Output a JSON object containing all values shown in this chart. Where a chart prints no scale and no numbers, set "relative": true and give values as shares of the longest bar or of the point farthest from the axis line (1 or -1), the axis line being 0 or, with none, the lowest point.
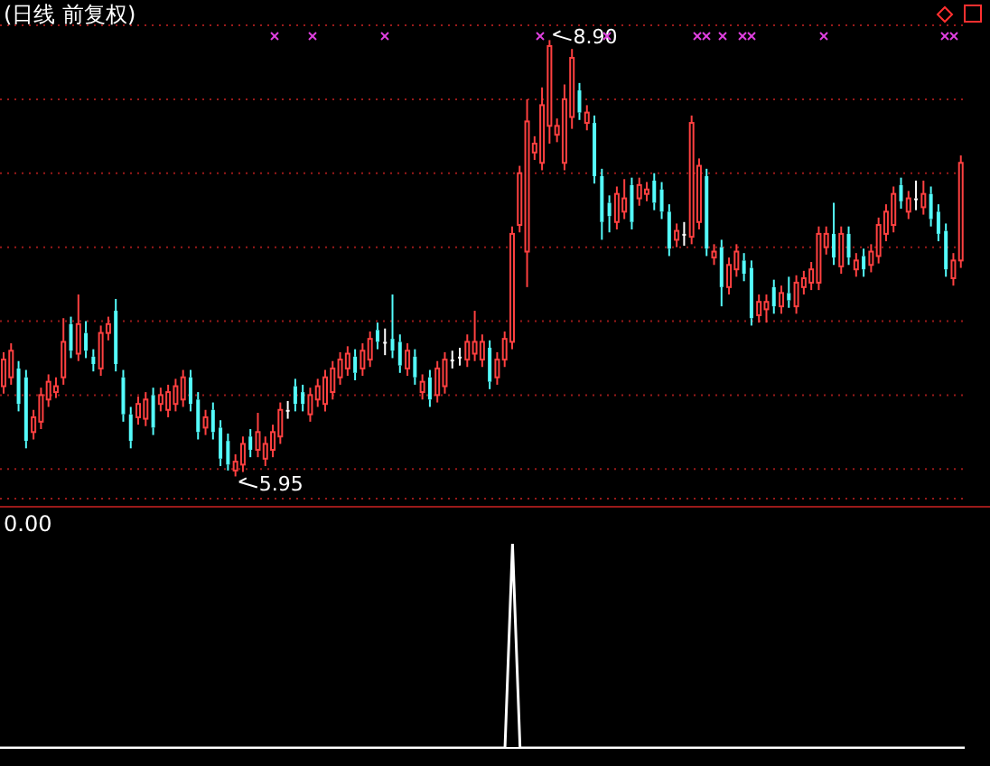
{
  "chart_data": [
    {
      "type": "candlestick",
      "title": "(日线 前复权)",
      "categories": [
        null,
        null,
        null,
        null,
        null,
        null,
        null,
        null,
        null,
        null,
        null,
        null,
        null,
        null,
        null,
        null,
        null,
        null,
        null,
        null,
        null,
        null,
        null,
        null,
        null,
        null,
        null,
        null,
        null,
        null,
        null,
        null,
        null,
        null,
        null,
        null,
        null,
        null,
        null,
        null,
        null,
        null,
        null,
        null,
        null,
        null,
        null,
        null,
        null,
        null,
        null,
        null,
        null,
        null,
        null,
        null,
        null,
        null,
        null,
        null,
        null,
        null,
        null,
        null,
        null,
        null,
        null,
        null,
        null,
        null,
        null,
        null,
        null,
        null,
        null,
        null,
        null,
        null,
        null,
        null,
        null,
        null,
        null,
        null,
        null,
        null,
        null,
        null,
        null,
        null,
        null,
        null,
        null,
        null,
        null,
        null,
        null,
        null,
        null,
        null,
        null,
        null,
        null,
        null,
        null,
        null,
        null,
        null,
        null,
        null,
        null,
        null,
        null,
        null,
        null,
        null,
        null,
        null,
        null,
        null,
        null,
        null,
        null,
        null,
        null,
        null,
        null,
        null,
        null
      ],
      "ohlc": [
        [
          6.56,
          6.79,
          6.51,
          6.74
        ],
        [
          6.62,
          6.85,
          6.57,
          6.8
        ],
        [
          6.68,
          6.73,
          6.39,
          6.44
        ],
        [
          6.62,
          6.67,
          6.14,
          6.19
        ],
        [
          6.25,
          6.4,
          6.2,
          6.35
        ],
        [
          6.32,
          6.55,
          6.27,
          6.5
        ],
        [
          6.47,
          6.64,
          6.42,
          6.59
        ],
        [
          6.52,
          6.62,
          6.48,
          6.56
        ],
        [
          6.62,
          7.02,
          6.57,
          6.86
        ],
        [
          6.98,
          7.03,
          6.75,
          6.8
        ],
        [
          6.78,
          7.18,
          6.73,
          6.98
        ],
        [
          6.92,
          7.0,
          6.75,
          6.8
        ],
        [
          6.76,
          6.81,
          6.66,
          6.71
        ],
        [
          6.68,
          6.97,
          6.63,
          6.92
        ],
        [
          6.92,
          7.03,
          6.87,
          6.98
        ],
        [
          7.07,
          7.15,
          6.66,
          6.71
        ],
        [
          6.62,
          6.67,
          6.32,
          6.37
        ],
        [
          6.37,
          6.42,
          6.14,
          6.19
        ],
        [
          6.35,
          6.49,
          6.3,
          6.44
        ],
        [
          6.34,
          6.52,
          6.29,
          6.47
        ],
        [
          6.5,
          6.55,
          6.23,
          6.28
        ],
        [
          6.44,
          6.55,
          6.39,
          6.5
        ],
        [
          6.4,
          6.57,
          6.35,
          6.52
        ],
        [
          6.44,
          6.61,
          6.39,
          6.56
        ],
        [
          6.47,
          6.67,
          6.42,
          6.62
        ],
        [
          6.62,
          6.67,
          6.39,
          6.44
        ],
        [
          6.47,
          6.52,
          6.2,
          6.25
        ],
        [
          6.28,
          6.4,
          6.23,
          6.35
        ],
        [
          6.4,
          6.45,
          6.2,
          6.25
        ],
        [
          6.28,
          6.33,
          6.02,
          6.07
        ],
        [
          6.19,
          6.24,
          5.99,
          6.03
        ],
        [
          5.99,
          6.1,
          5.95,
          6.05
        ],
        [
          6.03,
          6.22,
          5.98,
          6.17
        ],
        [
          6.22,
          6.27,
          6.08,
          6.13
        ],
        [
          6.13,
          6.38,
          6.08,
          6.25
        ],
        [
          6.07,
          6.22,
          6.02,
          6.17
        ],
        [
          6.13,
          6.3,
          6.08,
          6.25
        ],
        [
          6.22,
          6.45,
          6.17,
          6.4
        ],
        [
          6.4,
          6.46,
          6.34,
          6.4
        ],
        [
          6.56,
          6.61,
          6.39,
          6.44
        ],
        [
          6.52,
          6.57,
          6.39,
          6.44
        ],
        [
          6.37,
          6.55,
          6.32,
          6.5
        ],
        [
          6.47,
          6.61,
          6.42,
          6.56
        ],
        [
          6.44,
          6.67,
          6.39,
          6.62
        ],
        [
          6.52,
          6.73,
          6.47,
          6.68
        ],
        [
          6.62,
          6.79,
          6.57,
          6.74
        ],
        [
          6.68,
          6.83,
          6.63,
          6.78
        ],
        [
          6.76,
          6.81,
          6.6,
          6.65
        ],
        [
          6.68,
          6.85,
          6.63,
          6.8
        ],
        [
          6.74,
          6.93,
          6.69,
          6.88
        ],
        [
          6.94,
          6.99,
          6.81,
          6.86
        ],
        [
          6.86,
          6.95,
          6.77,
          6.86
        ],
        [
          6.88,
          7.18,
          6.75,
          6.8
        ],
        [
          6.86,
          6.91,
          6.65,
          6.7
        ],
        [
          6.68,
          6.85,
          6.63,
          6.8
        ],
        [
          6.76,
          6.81,
          6.57,
          6.62
        ],
        [
          6.52,
          6.64,
          6.47,
          6.59
        ],
        [
          6.62,
          6.67,
          6.42,
          6.47
        ],
        [
          6.5,
          6.73,
          6.45,
          6.68
        ],
        [
          6.56,
          6.79,
          6.51,
          6.74
        ],
        [
          6.74,
          6.8,
          6.68,
          6.74
        ],
        [
          6.76,
          6.82,
          6.7,
          6.76
        ],
        [
          6.74,
          6.91,
          6.69,
          6.86
        ],
        [
          6.78,
          7.07,
          6.73,
          6.86
        ],
        [
          6.74,
          6.91,
          6.69,
          6.86
        ],
        [
          6.82,
          6.87,
          6.54,
          6.59
        ],
        [
          6.62,
          6.79,
          6.57,
          6.74
        ],
        [
          6.74,
          6.93,
          6.69,
          6.88
        ],
        [
          6.86,
          7.64,
          6.81,
          7.59
        ],
        [
          7.65,
          8.05,
          7.6,
          8.0
        ],
        [
          7.47,
          8.5,
          7.23,
          8.35
        ],
        [
          8.14,
          8.25,
          8.09,
          8.2
        ],
        [
          8.07,
          8.58,
          8.02,
          8.46
        ],
        [
          8.32,
          8.9,
          8.2,
          8.86
        ],
        [
          8.26,
          8.37,
          8.21,
          8.32
        ],
        [
          8.07,
          8.6,
          8.02,
          8.5
        ],
        [
          8.38,
          8.84,
          8.3,
          8.78
        ],
        [
          8.56,
          8.61,
          8.36,
          8.41
        ],
        [
          8.34,
          8.46,
          8.29,
          8.41
        ],
        [
          8.34,
          8.39,
          7.93,
          7.98
        ],
        [
          7.98,
          8.03,
          7.55,
          7.67
        ],
        [
          7.8,
          7.85,
          7.6,
          7.71
        ],
        [
          7.67,
          7.91,
          7.62,
          7.86
        ],
        [
          7.74,
          7.96,
          7.69,
          7.83
        ],
        [
          7.92,
          7.97,
          7.62,
          7.67
        ],
        [
          7.83,
          7.97,
          7.78,
          7.92
        ],
        [
          7.86,
          7.94,
          7.81,
          7.89
        ],
        [
          7.95,
          8.0,
          7.75,
          7.8
        ],
        [
          7.89,
          7.94,
          7.69,
          7.74
        ],
        [
          7.74,
          7.79,
          7.44,
          7.49
        ],
        [
          7.55,
          7.66,
          7.5,
          7.61
        ],
        [
          7.59,
          7.67,
          7.51,
          7.59
        ],
        [
          7.57,
          8.39,
          7.52,
          8.34
        ],
        [
          7.67,
          8.1,
          7.62,
          8.05
        ],
        [
          7.98,
          8.03,
          7.44,
          7.49
        ],
        [
          7.43,
          7.52,
          7.38,
          7.47
        ],
        [
          7.5,
          7.55,
          7.1,
          7.23
        ],
        [
          7.23,
          7.43,
          7.18,
          7.38
        ],
        [
          7.35,
          7.52,
          7.3,
          7.47
        ],
        [
          7.41,
          7.46,
          7.27,
          7.32
        ],
        [
          7.36,
          7.41,
          6.97,
          7.02
        ],
        [
          7.04,
          7.18,
          6.99,
          7.13
        ],
        [
          7.08,
          7.18,
          6.99,
          7.13
        ],
        [
          7.23,
          7.28,
          7.05,
          7.1
        ],
        [
          7.1,
          7.24,
          7.05,
          7.19
        ],
        [
          7.19,
          7.3,
          7.09,
          7.14
        ],
        [
          7.1,
          7.31,
          7.05,
          7.26
        ],
        [
          7.23,
          7.34,
          7.18,
          7.29
        ],
        [
          7.26,
          7.4,
          7.21,
          7.35
        ],
        [
          7.26,
          7.64,
          7.21,
          7.59
        ],
        [
          7.5,
          7.64,
          7.45,
          7.59
        ],
        [
          7.59,
          7.8,
          7.38,
          7.43
        ],
        [
          7.37,
          7.64,
          7.32,
          7.59
        ],
        [
          7.59,
          7.64,
          7.38,
          7.43
        ],
        [
          7.35,
          7.46,
          7.3,
          7.41
        ],
        [
          7.44,
          7.49,
          7.3,
          7.35
        ],
        [
          7.38,
          7.52,
          7.33,
          7.47
        ],
        [
          7.44,
          7.7,
          7.39,
          7.65
        ],
        [
          7.59,
          7.79,
          7.54,
          7.74
        ],
        [
          7.65,
          7.91,
          7.6,
          7.86
        ],
        [
          7.92,
          7.97,
          7.76,
          7.81
        ],
        [
          7.74,
          7.88,
          7.69,
          7.83
        ],
        [
          7.83,
          7.95,
          7.75,
          7.83
        ],
        [
          7.77,
          7.95,
          7.72,
          7.86
        ],
        [
          7.86,
          7.91,
          7.64,
          7.69
        ],
        [
          7.74,
          7.79,
          7.54,
          7.59
        ],
        [
          7.61,
          7.66,
          7.3,
          7.35
        ],
        [
          7.29,
          7.46,
          7.24,
          7.41
        ],
        [
          7.41,
          8.12,
          7.36,
          8.07
        ]
      ],
      "colors": [
        "#ff4040",
        "#ff4040",
        "#54fcfc",
        "#54fcfc",
        "#ff4040",
        "#ff4040",
        "#ff4040",
        "#ff4040",
        "#ff4040",
        "#54fcfc",
        "#ff4040",
        "#54fcfc",
        "#54fcfc",
        "#ff4040",
        "#ff4040",
        "#54fcfc",
        "#54fcfc",
        "#54fcfc",
        "#ff4040",
        "#ff4040",
        "#54fcfc",
        "#ff4040",
        "#ff4040",
        "#ff4040",
        "#ff4040",
        "#54fcfc",
        "#54fcfc",
        "#ff4040",
        "#54fcfc",
        "#54fcfc",
        "#54fcfc",
        "#ff4040",
        "#ff4040",
        "#54fcfc",
        "#ff4040",
        "#ff4040",
        "#ff4040",
        "#ff4040",
        "#ffffff",
        "#54fcfc",
        "#54fcfc",
        "#ff4040",
        "#ff4040",
        "#ff4040",
        "#ff4040",
        "#ff4040",
        "#ff4040",
        "#54fcfc",
        "#ff4040",
        "#ff4040",
        "#54fcfc",
        "#ffffff",
        "#54fcfc",
        "#54fcfc",
        "#ff4040",
        "#54fcfc",
        "#ff4040",
        "#54fcfc",
        "#ff4040",
        "#ff4040",
        "#ffffff",
        "#ffffff",
        "#ff4040",
        "#ff4040",
        "#ff4040",
        "#54fcfc",
        "#ff4040",
        "#ff4040",
        "#ff4040",
        "#ff4040",
        "#ff4040",
        "#ff4040",
        "#ff4040",
        "#ff4040",
        "#ff4040",
        "#ff4040",
        "#ff4040",
        "#54fcfc",
        "#ff4040",
        "#54fcfc",
        "#54fcfc",
        "#54fcfc",
        "#ff4040",
        "#ff4040",
        "#54fcfc",
        "#ff4040",
        "#ff4040",
        "#54fcfc",
        "#54fcfc",
        "#54fcfc",
        "#ff4040",
        "#ffffff",
        "#ff4040",
        "#ff4040",
        "#54fcfc",
        "#ff4040",
        "#54fcfc",
        "#ff4040",
        "#ff4040",
        "#54fcfc",
        "#54fcfc",
        "#ff4040",
        "#ff4040",
        "#54fcfc",
        "#ff4040",
        "#54fcfc",
        "#ff4040",
        "#ff4040",
        "#ff4040",
        "#ff4040",
        "#ff4040",
        "#54fcfc",
        "#ff4040",
        "#54fcfc",
        "#ff4040",
        "#54fcfc",
        "#ff4040",
        "#ff4040",
        "#ff4040",
        "#ff4040",
        "#54fcfc",
        "#ff4040",
        "#ffffff",
        "#ff4040",
        "#54fcfc",
        "#54fcfc",
        "#54fcfc",
        "#ff4040",
        "#ff4040"
      ],
      "ylim": [
        5.8,
        9.0
      ],
      "yticks": [
        {
          "value": 6.0,
          "label": null
        },
        {
          "value": 6.5,
          "label": null
        },
        {
          "value": 7.0,
          "label": null
        },
        {
          "value": 7.5,
          "label": null
        },
        {
          "value": 8.0,
          "label": null
        },
        {
          "value": 8.5,
          "label": null
        }
      ],
      "grid": "y",
      "tick_labels": false,
      "annotations": [
        "8.90",
        "5.95"
      ]
    },
    {
      "type": "line",
      "title": "0.00",
      "categories": [
        null,
        null,
        null,
        null,
        null,
        null,
        null,
        null,
        null,
        null,
        null,
        null,
        null,
        null,
        null,
        null,
        null,
        null,
        null,
        null,
        null,
        null,
        null,
        null,
        null,
        null,
        null,
        null,
        null,
        null,
        null,
        null,
        null,
        null,
        null,
        null,
        null,
        null,
        null,
        null,
        null,
        null,
        null,
        null,
        null,
        null,
        null,
        null,
        null,
        null,
        null,
        null,
        null,
        null,
        null,
        null,
        null,
        null,
        null,
        null,
        null,
        null,
        null,
        null,
        null,
        null,
        null,
        null,
        null,
        null,
        null,
        null,
        null,
        null,
        null,
        null,
        null,
        null,
        null,
        null,
        null,
        null,
        null,
        null,
        null,
        null,
        null,
        null,
        null,
        null,
        null,
        null,
        null,
        null,
        null,
        null,
        null,
        null,
        null,
        null,
        null,
        null,
        null,
        null,
        null,
        null,
        null,
        null,
        null,
        null,
        null,
        null,
        null,
        null,
        null,
        null,
        null,
        null,
        null,
        null,
        null,
        null,
        null,
        null,
        null,
        null,
        null,
        null,
        null
      ],
      "values": [
        0,
        0,
        0,
        0,
        0,
        0,
        0,
        0,
        0,
        0,
        0,
        0,
        0,
        0,
        0,
        0,
        0,
        0,
        0,
        0,
        0,
        0,
        0,
        0,
        0,
        0,
        0,
        0,
        0,
        0,
        0,
        0,
        0,
        0,
        0,
        0,
        0,
        0,
        0,
        0,
        0,
        0,
        0,
        0,
        0,
        0,
        0,
        0,
        0,
        0,
        0,
        0,
        0,
        0,
        0,
        0,
        0,
        0,
        0,
        0,
        0,
        0,
        0,
        0,
        0,
        0,
        0,
        0,
        1,
        0,
        0,
        0,
        0,
        0,
        0,
        0,
        0,
        0,
        0,
        0,
        0,
        0,
        0,
        0,
        0,
        0,
        0,
        0,
        0,
        0,
        0,
        0,
        0,
        0,
        0,
        0,
        0,
        0,
        0,
        0,
        0,
        0,
        0,
        0,
        0,
        0,
        0,
        0,
        0,
        0,
        0,
        0,
        0,
        0,
        0,
        0,
        0,
        0,
        0,
        0,
        0,
        0,
        0,
        0,
        0,
        0,
        0,
        0,
        0
      ],
      "color": "#ffffff",
      "relative": true
    }
  ]
}
